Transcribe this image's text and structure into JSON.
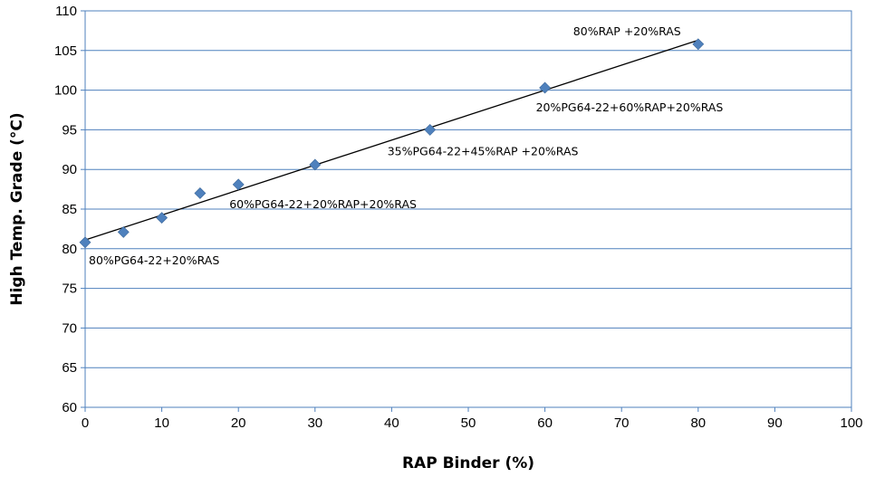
{
  "chart_data": {
    "type": "scatter",
    "xlabel": "RAP Binder (%)",
    "ylabel": "High Temp. Grade (°C)",
    "xlim": [
      0,
      100
    ],
    "ylim": [
      60,
      110
    ],
    "xticks": [
      0,
      10,
      20,
      30,
      40,
      50,
      60,
      70,
      80,
      90,
      100
    ],
    "yticks": [
      60,
      65,
      70,
      75,
      80,
      85,
      90,
      95,
      100,
      105,
      110
    ],
    "grid": "horizontal",
    "marker_color": "#4F81BD",
    "series": [
      {
        "points": [
          {
            "x": 0,
            "y": 80.8
          },
          {
            "x": 5,
            "y": 82.1
          },
          {
            "x": 10,
            "y": 83.9
          },
          {
            "x": 15,
            "y": 87.0
          },
          {
            "x": 20,
            "y": 88.1
          },
          {
            "x": 30,
            "y": 90.6
          },
          {
            "x": 45,
            "y": 95.0
          },
          {
            "x": 60,
            "y": 100.3
          },
          {
            "x": 80,
            "y": 105.8
          }
        ]
      }
    ],
    "trendline": {
      "x1": 0,
      "y1": 81.1,
      "x2": 80,
      "y2": 106.3
    },
    "annotations": [
      {
        "text": "80%PG64-22+20%RAS",
        "x": 0,
        "y": 80.8
      },
      {
        "text": "60%PG64-22+20%RAP+20%RAS",
        "x": 20,
        "y": 88.1
      },
      {
        "text": "35%PG64-22+45%RAP +20%RAS",
        "x": 45,
        "y": 95.0
      },
      {
        "text": "20%PG64-22+60%RAP+20%RAS",
        "x": 60,
        "y": 100.3
      },
      {
        "text": "80%RAP +20%RAS",
        "x": 80,
        "y": 105.8
      }
    ]
  }
}
